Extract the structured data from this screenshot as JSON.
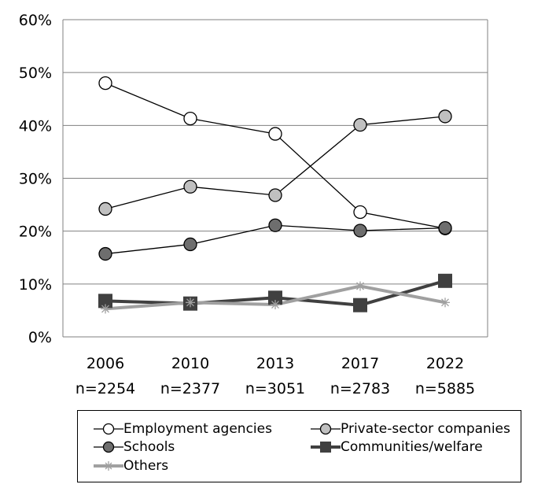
{
  "chart_data": {
    "type": "line",
    "categories": [
      "2006",
      "2010",
      "2013",
      "2017",
      "2022"
    ],
    "sample_sizes": [
      "n=2254",
      "n=2377",
      "n=3051",
      "n=2783",
      "n=5885"
    ],
    "ylim": [
      0,
      60
    ],
    "yticks": [
      "0%",
      "10%",
      "20%",
      "30%",
      "40%",
      "50%",
      "60%"
    ],
    "grid": true,
    "legend_position": "bottom",
    "series": [
      {
        "name": "Employment agencies",
        "marker": "open-circle",
        "color": "#000000",
        "values": [
          48,
          41.3,
          38.4,
          23.6,
          20.5
        ]
      },
      {
        "name": "Private-sector companies",
        "marker": "grey-circle",
        "color": "#000000",
        "values": [
          24.2,
          28.4,
          26.8,
          40.1,
          41.7
        ]
      },
      {
        "name": "Schools",
        "marker": "dark-circle",
        "color": "#000000",
        "values": [
          15.7,
          17.5,
          21.1,
          20.1,
          20.6
        ]
      },
      {
        "name": "Communities/welfare",
        "marker": "square",
        "color": "#404040",
        "values": [
          6.8,
          6.3,
          7.4,
          6.0,
          10.6
        ]
      },
      {
        "name": "Others",
        "marker": "asterisk",
        "color": "#a0a0a0",
        "values": [
          5.3,
          6.5,
          6.1,
          9.6,
          6.5
        ]
      }
    ]
  }
}
